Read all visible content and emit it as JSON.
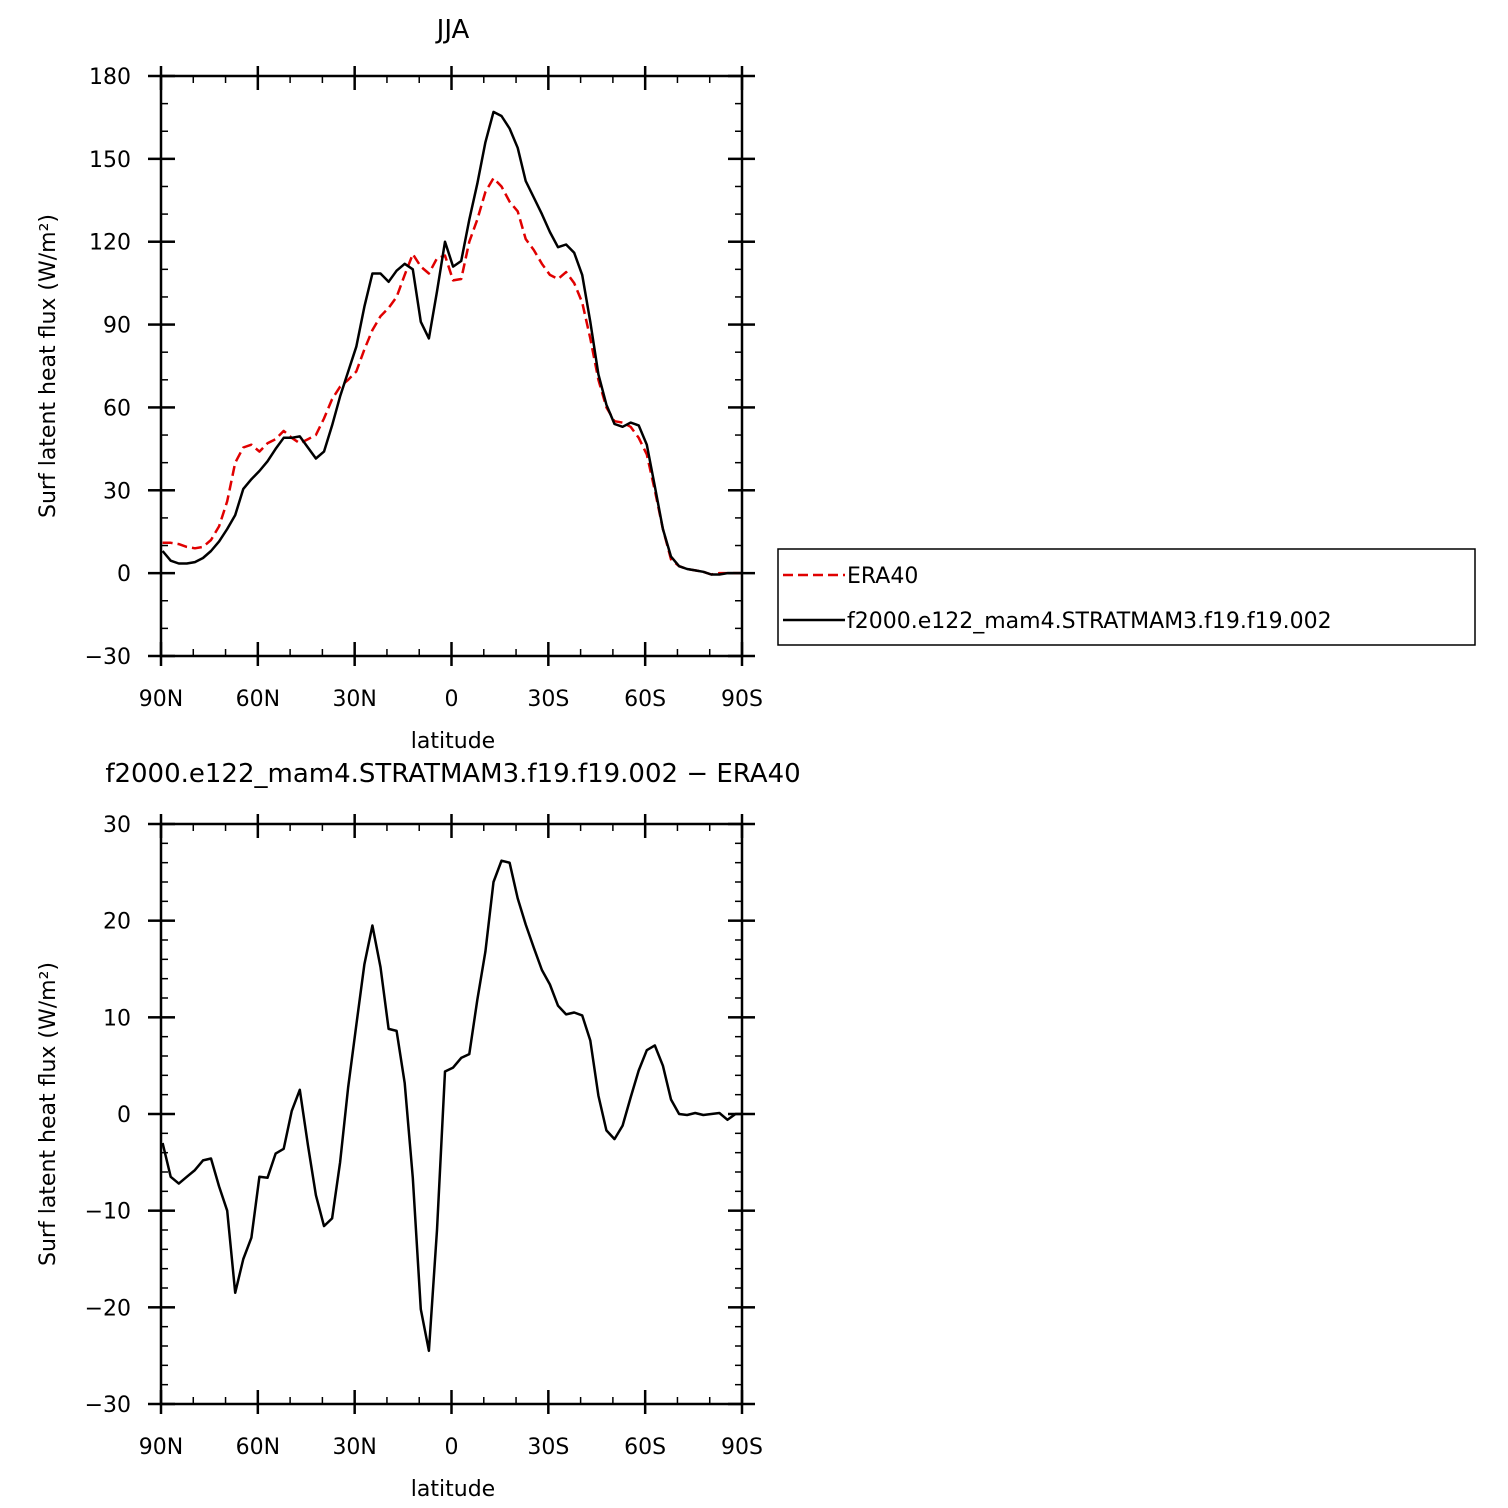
{
  "chart_data": [
    {
      "type": "line",
      "title": "JJA",
      "xlabel": "latitude",
      "ylabel": "Surf latent heat flux (W/m²)",
      "xlim": [
        -90,
        90
      ],
      "ylim": [
        -30,
        180
      ],
      "x_ticks": [
        -90,
        -60,
        -30,
        0,
        30,
        60,
        90
      ],
      "x_tick_labels": [
        "90N",
        "60N",
        "30N",
        "0",
        "30S",
        "60S",
        "90S"
      ],
      "y_ticks": [
        -30,
        0,
        30,
        60,
        90,
        120,
        150,
        180
      ],
      "legend_placement": "right",
      "series": [
        {
          "name": "ERA40",
          "color": "#e00000",
          "dash": "dashed",
          "x": [
            -89.5,
            -87,
            -84.5,
            -82,
            -79.5,
            -77,
            -74.5,
            -72,
            -69.5,
            -67,
            -64.5,
            -62,
            -59.5,
            -57,
            -54.5,
            -52,
            -49.5,
            -47,
            -44.5,
            -42,
            -39.5,
            -37,
            -34.5,
            -32,
            -29.5,
            -27,
            -24.5,
            -22,
            -19.5,
            -17,
            -14.5,
            -12,
            -9.5,
            -7,
            -4.5,
            -2,
            0.5,
            3,
            5.5,
            8,
            10.5,
            13,
            15.5,
            18,
            20.5,
            23,
            25.5,
            28,
            30.5,
            33,
            35.5,
            38,
            40.5,
            43,
            45.5,
            48,
            50.5,
            53,
            55.5,
            58,
            60.5,
            63,
            65.5,
            68,
            70.5,
            73,
            75.5,
            78,
            80.5,
            83,
            85.5,
            88,
            90
          ],
          "y": [
            11,
            11,
            10.5,
            9.5,
            9,
            9.5,
            12,
            17,
            26,
            40,
            45.5,
            46.5,
            44,
            47,
            48.5,
            51.5,
            49,
            47,
            48.5,
            50,
            56,
            63,
            67.5,
            70,
            73,
            81,
            88,
            93,
            96,
            100,
            108,
            115.5,
            111,
            108.5,
            114,
            115,
            106,
            106.5,
            120,
            128,
            138,
            143,
            140,
            134.5,
            131,
            121,
            117,
            112,
            108,
            106.5,
            109,
            105,
            98,
            85,
            70,
            60,
            55,
            54.5,
            53,
            49,
            43,
            30,
            16,
            5,
            2.5,
            1.5,
            1,
            0.5,
            -0.5,
            0,
            0,
            0,
            0
          ]
        },
        {
          "name": "f2000.e122_mam4.STRATMAM3.f19.f19.002",
          "color": "#000000",
          "dash": "solid",
          "x": [
            -89.5,
            -87,
            -84.5,
            -82,
            -79.5,
            -77,
            -74.5,
            -72,
            -69.5,
            -67,
            -64.5,
            -62,
            -59.5,
            -57,
            -54.5,
            -52,
            -49.5,
            -47,
            -44.5,
            -42,
            -39.5,
            -37,
            -34.5,
            -32,
            -29.5,
            -27,
            -24.5,
            -22,
            -19.5,
            -17,
            -14.5,
            -12,
            -9.5,
            -7,
            -4.5,
            -2,
            0.5,
            3,
            5.5,
            8,
            10.5,
            13,
            15.5,
            18,
            20.5,
            23,
            25.5,
            28,
            30.5,
            33,
            35.5,
            38,
            40.5,
            43,
            45.5,
            48,
            50.5,
            53,
            55.5,
            58,
            60.5,
            63,
            65.5,
            68,
            70.5,
            73,
            75.5,
            78,
            80.5,
            83,
            85.5,
            88,
            90
          ],
          "y": [
            8,
            4.5,
            3.5,
            3.5,
            4,
            5.5,
            8,
            11.5,
            16,
            21,
            30.5,
            34,
            37,
            40.5,
            45,
            49,
            49,
            49.5,
            45.5,
            41.5,
            44,
            53.5,
            64,
            73,
            82,
            96.5,
            108.5,
            108.5,
            105.5,
            109.5,
            112,
            110,
            91,
            85,
            102,
            120,
            111,
            113,
            128,
            141,
            156,
            167,
            165.5,
            161,
            154,
            142,
            136,
            130,
            123.5,
            118,
            119,
            116,
            108,
            91,
            72,
            61,
            54,
            53,
            54.5,
            53.5,
            46.5,
            31.5,
            16,
            6,
            2.5,
            1.5,
            1,
            0.5,
            -0.5,
            -0.5,
            0,
            0,
            0
          ]
        }
      ]
    },
    {
      "type": "line",
      "title": "f2000.e122_mam4.STRATMAM3.f19.f19.002 − ERA40",
      "xlabel": "latitude",
      "ylabel": "Surf latent heat flux (W/m²)",
      "xlim": [
        -90,
        90
      ],
      "ylim": [
        -30,
        30
      ],
      "x_ticks": [
        -90,
        -60,
        -30,
        0,
        30,
        60,
        90
      ],
      "x_tick_labels": [
        "90N",
        "60N",
        "30N",
        "0",
        "30S",
        "60S",
        "90S"
      ],
      "y_ticks": [
        -30,
        -20,
        -10,
        0,
        10,
        20,
        30
      ],
      "series": [
        {
          "color": "#000000",
          "dash": "solid",
          "x": [
            -89.5,
            -87,
            -84.5,
            -82,
            -79.5,
            -77,
            -74.5,
            -72,
            -69.5,
            -67,
            -64.5,
            -62,
            -59.5,
            -57,
            -54.5,
            -52,
            -49.5,
            -47,
            -44.5,
            -42,
            -39.5,
            -37,
            -34.5,
            -32,
            -29.5,
            -27,
            -24.5,
            -22,
            -19.5,
            -17,
            -14.5,
            -12,
            -9.5,
            -7,
            -4.5,
            -2,
            0.5,
            3,
            5.5,
            8,
            10.5,
            13,
            15.5,
            18,
            20.5,
            23,
            25.5,
            28,
            30.5,
            33,
            35.5,
            38,
            40.5,
            43,
            45.5,
            48,
            50.5,
            53,
            55.5,
            58,
            60.5,
            63,
            65.5,
            68,
            70.5,
            73,
            75.5,
            78,
            80.5,
            83,
            85.5,
            88,
            90
          ],
          "y": [
            -3,
            -6.5,
            -7.2,
            -6.5,
            -5.8,
            -4.8,
            -4.6,
            -7.5,
            -10,
            -18.5,
            -15,
            -12.8,
            -6.5,
            -6.6,
            -4.1,
            -3.6,
            0.3,
            2.5,
            -3.2,
            -8.4,
            -11.6,
            -10.8,
            -5,
            2.8,
            9.2,
            15.5,
            19.5,
            15.2,
            8.8,
            8.6,
            3.2,
            -6.6,
            -20.2,
            -24.5,
            -12,
            4.4,
            4.8,
            5.8,
            6.2,
            11.8,
            16.8,
            24,
            26.2,
            26,
            22.3,
            19.6,
            17.2,
            14.9,
            13.4,
            11.2,
            10.3,
            10.5,
            10.2,
            7.6,
            1.9,
            -1.7,
            -2.6,
            -1.2,
            1.7,
            4.5,
            6.6,
            7.1,
            5,
            1.5,
            0,
            -0.1,
            0.1,
            -0.1,
            0,
            0.1,
            -0.6,
            0,
            0
          ]
        }
      ]
    }
  ]
}
